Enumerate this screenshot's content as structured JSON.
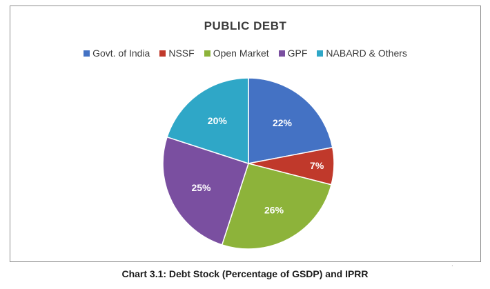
{
  "chart_data": {
    "type": "pie",
    "title": "PUBLIC DEBT",
    "categories": [
      "Govt. of India",
      "NSSF",
      "Open Market",
      "GPF",
      "NABARD & Others"
    ],
    "values": [
      22,
      7,
      26,
      25,
      20
    ],
    "value_labels": [
      "22%",
      "7%",
      "26%",
      "25%",
      "20%"
    ],
    "colors": [
      "#4472c4",
      "#c0392b",
      "#8db33a",
      "#7a4fa0",
      "#2fa7c7"
    ],
    "legend_position": "top"
  },
  "caption": "Chart 3.1: Debt Stock (Percentage of GSDP) and IPRR",
  "corner_mark": "."
}
